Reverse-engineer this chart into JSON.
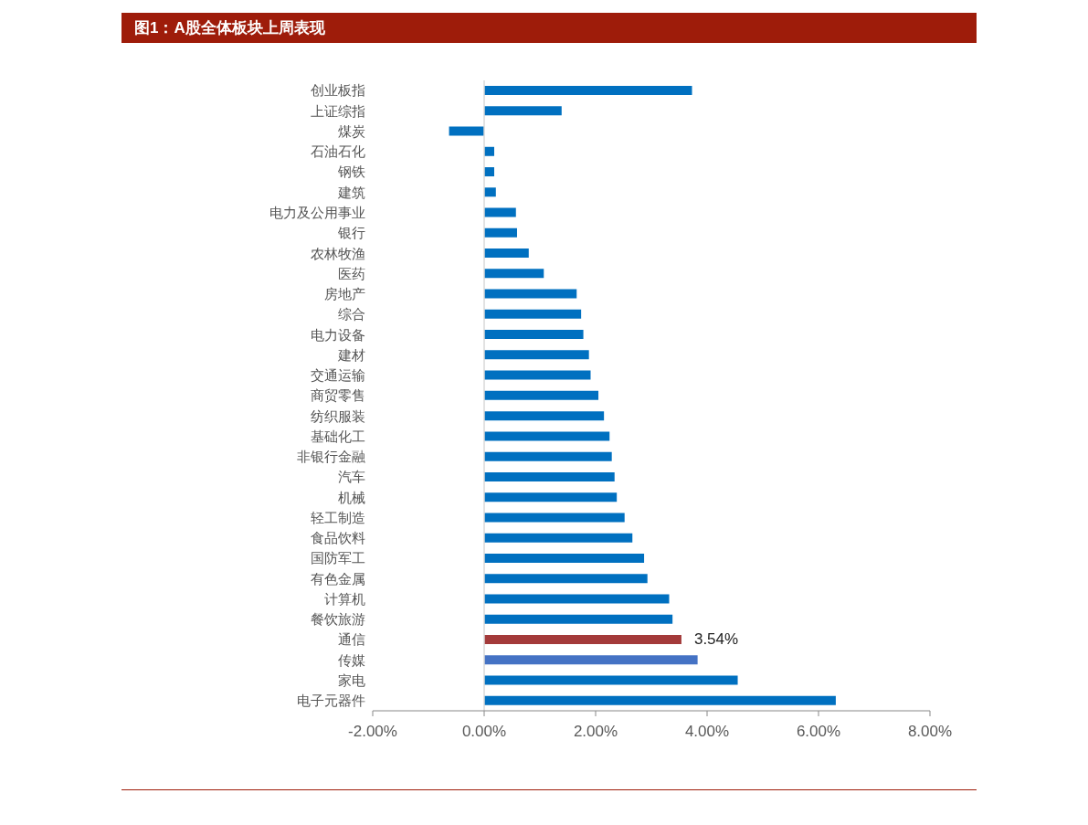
{
  "chart_data": {
    "type": "bar",
    "orientation": "horizontal",
    "title": "图1：A股全体板块上周表现",
    "categories": [
      "创业板指",
      "上证综指",
      "煤炭",
      "石油石化",
      "钢铁",
      "建筑",
      "电力及公用事业",
      "银行",
      "农林牧渔",
      "医药",
      "房地产",
      "综合",
      "电力设备",
      "建材",
      "交通运输",
      "商贸零售",
      "纺织服装",
      "基础化工",
      "非银行金融",
      "汽车",
      "机械",
      "轻工制造",
      "食品饮料",
      "国防军工",
      "有色金属",
      "计算机",
      "餐饮旅游",
      "通信",
      "传媒",
      "家电",
      "电子元器件"
    ],
    "values": [
      3.73,
      1.39,
      -0.63,
      0.18,
      0.18,
      0.21,
      0.57,
      0.59,
      0.8,
      1.07,
      1.66,
      1.74,
      1.78,
      1.88,
      1.91,
      2.05,
      2.15,
      2.25,
      2.29,
      2.34,
      2.38,
      2.52,
      2.66,
      2.87,
      2.93,
      3.32,
      3.38,
      3.54,
      3.83,
      4.55,
      6.31
    ],
    "colors": [
      "#0070c0",
      "#0070c0",
      "#0070c0",
      "#0070c0",
      "#0070c0",
      "#0070c0",
      "#0070c0",
      "#0070c0",
      "#0070c0",
      "#0070c0",
      "#0070c0",
      "#0070c0",
      "#0070c0",
      "#0070c0",
      "#0070c0",
      "#0070c0",
      "#0070c0",
      "#0070c0",
      "#0070c0",
      "#0070c0",
      "#0070c0",
      "#0070c0",
      "#0070c0",
      "#0070c0",
      "#0070c0",
      "#0070c0",
      "#0070c0",
      "#a33a3a",
      "#4472c4",
      "#0070c0",
      "#0070c0"
    ],
    "value_labels": [
      null,
      null,
      null,
      null,
      null,
      null,
      null,
      null,
      null,
      null,
      null,
      null,
      null,
      null,
      null,
      null,
      null,
      null,
      null,
      null,
      null,
      null,
      null,
      null,
      null,
      null,
      null,
      "3.54%",
      null,
      null,
      null
    ],
    "xlim": [
      -2,
      8
    ],
    "xticks": [
      {
        "value": -2,
        "label": "-2.00%"
      },
      {
        "value": 0,
        "label": "0.00%"
      },
      {
        "value": 2,
        "label": "2.00%"
      },
      {
        "value": 4,
        "label": "4.00%"
      },
      {
        "value": 6,
        "label": "6.00%"
      },
      {
        "value": 8,
        "label": "8.00%"
      }
    ],
    "legend": false
  }
}
